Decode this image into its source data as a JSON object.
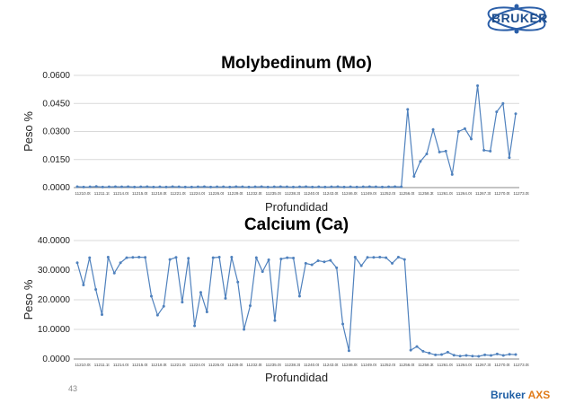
{
  "logo": {
    "text": "BRUKER"
  },
  "footer": {
    "page_number": "43",
    "brand": "Bruker",
    "brand_accent": "AXS"
  },
  "chart_data": [
    {
      "type": "line",
      "title": "Molybedinum (Mo)",
      "xlabel": "Profundidad",
      "ylabel": "Peso %",
      "ylim": [
        0,
        0.06
      ],
      "yticks": [
        "0.0000",
        "0.0150",
        "0.0300",
        "0.0450",
        "0.0600"
      ],
      "tick_values": [
        0,
        0.015,
        0.03,
        0.045,
        0.06
      ],
      "xtick_labels": [
        "11210.0t",
        "11211.1t",
        "11214.0t",
        "11215.0t",
        "11218.0t",
        "11221.0t",
        "11224.0t",
        "11226.0t",
        "11229.0t",
        "11232.0t",
        "11235.0t",
        "11238.3t",
        "11240.0t",
        "11243.0t",
        "11246.0t",
        "11249.0t",
        "11252.0t",
        "11256.0t",
        "11258.3t",
        "11261.0t",
        "11264.0t",
        "11267.3t",
        "11270.0t",
        "11273.0t"
      ],
      "color": "#4f81bd",
      "grid": true,
      "values": [
        0.0005,
        0.0003,
        0.0004,
        0.0006,
        0.0003,
        0.0004,
        0.0005,
        0.0004,
        0.0005,
        0.0003,
        0.0004,
        0.0005,
        0.0003,
        0.0004,
        0.0003,
        0.0005,
        0.0004,
        0.0003,
        0.0003,
        0.0004,
        0.0005,
        0.0003,
        0.0004,
        0.0004,
        0.0003,
        0.0005,
        0.0004,
        0.0003,
        0.0004,
        0.0005,
        0.0003,
        0.0004,
        0.0005,
        0.0004,
        0.0003,
        0.0004,
        0.0005,
        0.0003,
        0.0004,
        0.0003,
        0.0004,
        0.0005,
        0.0003,
        0.0004,
        0.0003,
        0.0004,
        0.0005,
        0.0004,
        0.0003,
        0.0004,
        0.0005,
        0.0004,
        0.0418,
        0.006,
        0.014,
        0.018,
        0.031,
        0.019,
        0.0195,
        0.007,
        0.03,
        0.0315,
        0.026,
        0.0545,
        0.02,
        0.0195,
        0.0405,
        0.045,
        0.016,
        0.0395
      ]
    },
    {
      "type": "line",
      "title": "Calcium (Ca)",
      "xlabel": "Profundidad",
      "ylabel": "Peso %",
      "ylim": [
        0,
        40
      ],
      "yticks": [
        "0.0000",
        "10.0000",
        "20.0000",
        "30.0000",
        "40.0000"
      ],
      "tick_values": [
        0,
        10,
        20,
        30,
        40
      ],
      "xtick_labels": [
        "11210.0t",
        "11211.1t",
        "11214.0t",
        "11215.0t",
        "11218.0t",
        "11221.0t",
        "11224.0t",
        "11226.0t",
        "11229.0t",
        "11232.0t",
        "11235.0t",
        "11238.3t",
        "11240.0t",
        "11243.0t",
        "11246.0t",
        "11249.0t",
        "11252.0t",
        "11256.0t",
        "11258.3t",
        "11261.0t",
        "11264.0t",
        "11267.3t",
        "11270.0t",
        "11273.0t"
      ],
      "color": "#4f81bd",
      "grid": true,
      "values": [
        32.5,
        25.0,
        34.2,
        23.5,
        15.0,
        34.4,
        29.0,
        32.5,
        34.2,
        34.3,
        34.4,
        34.3,
        21.2,
        14.8,
        17.8,
        33.6,
        34.3,
        19.2,
        34.0,
        11.2,
        22.5,
        15.9,
        34.2,
        34.4,
        20.5,
        34.4,
        26.0,
        10.0,
        18.0,
        34.2,
        29.5,
        33.5,
        13.0,
        33.8,
        34.2,
        34.1,
        21.2,
        32.3,
        31.8,
        33.2,
        32.8,
        33.3,
        30.8,
        11.8,
        2.8,
        34.4,
        31.5,
        34.3,
        34.3,
        34.4,
        34.2,
        32.3,
        34.4,
        33.6,
        3.0,
        4.2,
        2.6,
        2.0,
        1.4,
        1.5,
        2.3,
        1.3,
        1.0,
        1.2,
        1.0,
        0.9,
        1.4,
        1.2,
        1.7,
        1.2,
        1.6,
        1.5
      ]
    }
  ]
}
